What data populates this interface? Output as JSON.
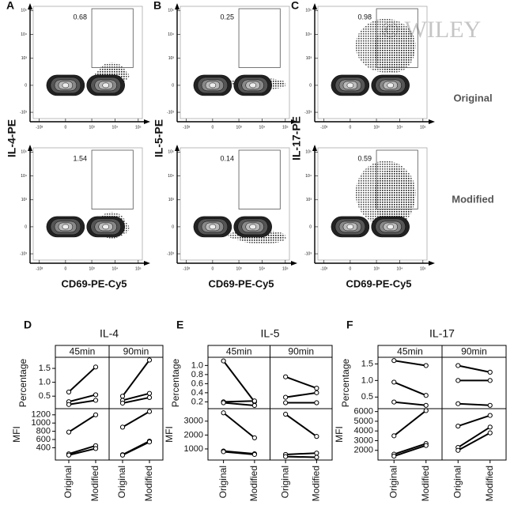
{
  "watermark": "© WILEY",
  "flow": {
    "x_label": "CD69-PE-Cy5",
    "row_labels": [
      "Original",
      "Modified"
    ],
    "ticks": [
      {
        "value": -1000,
        "label": "-10³"
      },
      {
        "value": 0,
        "label": "0"
      },
      {
        "value": 1000,
        "label": "10³"
      },
      {
        "value": 10000,
        "label": "10⁴"
      },
      {
        "value": 100000,
        "label": "10⁵"
      }
    ],
    "panels": [
      {
        "letter": "A",
        "y_label": "IL-4-PE",
        "gates": [
          0.68,
          1.54
        ]
      },
      {
        "letter": "B",
        "y_label": "IL-5-PE",
        "gates": [
          0.25,
          0.14
        ]
      },
      {
        "letter": "C",
        "y_label": "IL-17-PE",
        "gates": [
          0.98,
          0.59
        ]
      }
    ]
  },
  "chart_data": [
    {
      "type": "line",
      "letter": "D",
      "title": "IL-4",
      "facets": [
        "45min",
        "90min"
      ],
      "categories": [
        "Original",
        "Modified"
      ],
      "rows": [
        {
          "label": "Percentage",
          "ylim": [
            0.05,
            1.9
          ],
          "yticks": [
            0.5,
            {
              "value": 1,
              "label": "1.0"
            },
            1.5
          ],
          "values": [
            [
              [
                0.65,
                1.55
              ],
              [
                0.3,
                0.55
              ],
              [
                0.2,
                0.35
              ]
            ],
            [
              [
                0.5,
                1.8
              ],
              [
                0.35,
                0.6
              ],
              [
                0.25,
                0.45
              ]
            ]
          ]
        },
        {
          "label": "MFI",
          "ylim": [
            100,
            1350
          ],
          "yticks": [
            400,
            600,
            800,
            1000,
            1200
          ],
          "values": [
            [
              [
                780,
                1200
              ],
              [
                250,
                450
              ],
              [
                220,
                380
              ]
            ],
            [
              [
                900,
                1280
              ],
              [
                230,
                560
              ],
              [
                220,
                540
              ]
            ]
          ]
        }
      ]
    },
    {
      "type": "line",
      "letter": "E",
      "title": "IL-5",
      "facets": [
        "45min",
        "90min"
      ],
      "categories": [
        "Original",
        "Modified"
      ],
      "rows": [
        {
          "label": "Percentage",
          "ylim": [
            0.05,
            1.18
          ],
          "yticks": [
            0.2,
            0.4,
            0.6,
            0.8,
            {
              "value": 1,
              "label": "1.0"
            }
          ],
          "values": [
            [
              [
                1.1,
                0.2
              ],
              [
                0.2,
                0.22
              ],
              [
                0.18,
                0.12
              ]
            ],
            [
              [
                0.75,
                0.5
              ],
              [
                0.3,
                0.4
              ],
              [
                0.18,
                0.18
              ]
            ]
          ]
        },
        {
          "label": "MFI",
          "ylim": [
            200,
            3900
          ],
          "yticks": [
            1000,
            2000,
            3000
          ],
          "values": [
            [
              [
                3600,
                1800
              ],
              [
                850,
                650
              ],
              [
                800,
                600
              ]
            ],
            [
              [
                3500,
                1900
              ],
              [
                600,
                700
              ],
              [
                450,
                400
              ]
            ]
          ]
        }
      ]
    },
    {
      "type": "line",
      "letter": "F",
      "title": "IL-17",
      "facets": [
        "45min",
        "90min"
      ],
      "categories": [
        "Original",
        "Modified"
      ],
      "rows": [
        {
          "label": "Percentage",
          "ylim": [
            0.15,
            1.7
          ],
          "yticks": [
            0.5,
            {
              "value": 1,
              "label": "1.0"
            },
            1.5
          ],
          "values": [
            [
              [
                1.6,
                1.45
              ],
              [
                0.95,
                0.55
              ],
              [
                0.35,
                0.25
              ]
            ],
            [
              [
                1.45,
                1.25
              ],
              [
                1.0,
                1.0
              ],
              [
                0.3,
                0.25
              ]
            ]
          ]
        },
        {
          "label": "MFI",
          "ylim": [
            1000,
            6300
          ],
          "yticks": [
            2000,
            3000,
            4000,
            5000,
            6000
          ],
          "values": [
            [
              [
                3500,
                6100
              ],
              [
                1600,
                2700
              ],
              [
                1400,
                2500
              ]
            ],
            [
              [
                4500,
                5600
              ],
              [
                2300,
                4400
              ],
              [
                2000,
                3800
              ]
            ]
          ]
        }
      ]
    }
  ]
}
